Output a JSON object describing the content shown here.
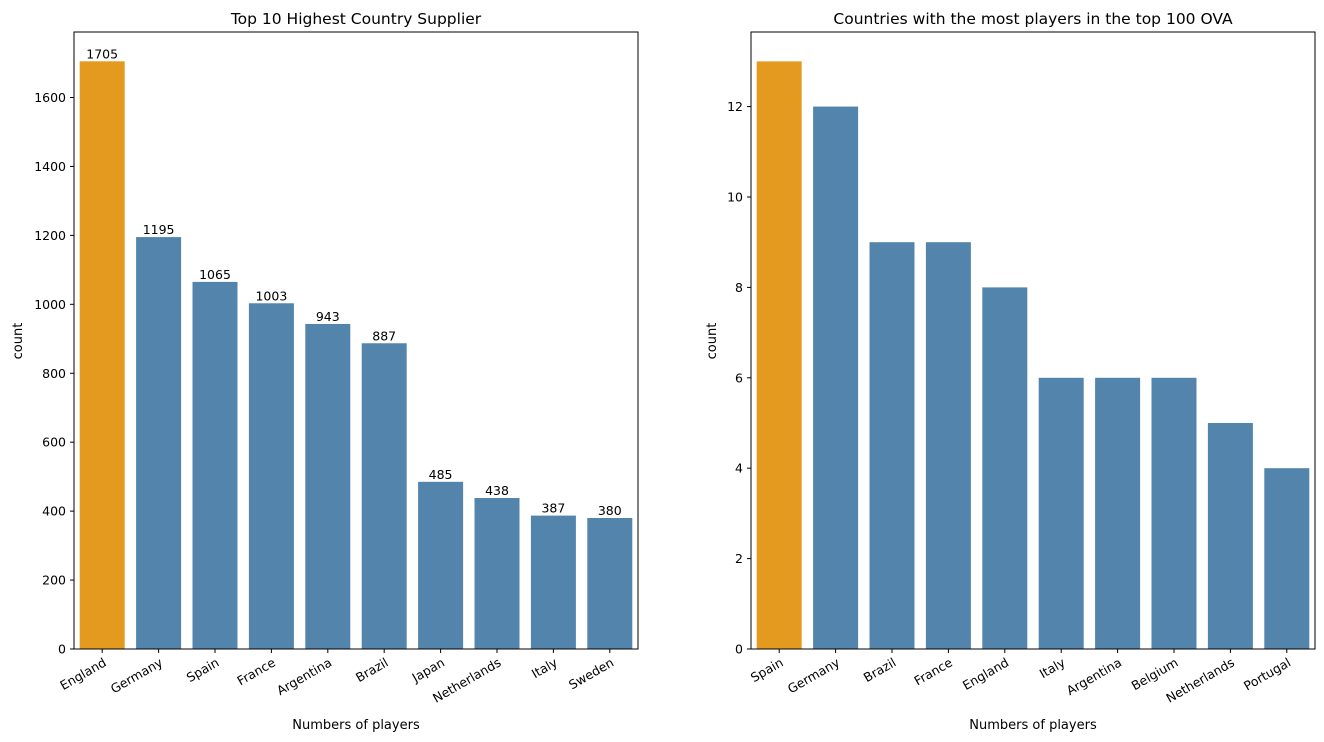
{
  "chart_data": [
    {
      "type": "bar",
      "title": "Top 10 Highest Country Supplier",
      "xlabel": "Numbers of players",
      "ylabel": "count",
      "categories": [
        "England",
        "Germany",
        "Spain",
        "France",
        "Argentina",
        "Brazil",
        "Japan",
        "Netherlands",
        "Italy",
        "Sweden"
      ],
      "values": [
        1705,
        1195,
        1065,
        1003,
        943,
        887,
        485,
        438,
        387,
        380
      ],
      "data_labels": [
        "1705",
        "1195",
        "1065",
        "1003",
        "943",
        "887",
        "485",
        "438",
        "387",
        "380"
      ],
      "yticks": [
        0,
        200,
        400,
        600,
        800,
        1000,
        1200,
        1400,
        1600
      ],
      "ylim": [
        0,
        1790
      ],
      "grid": false,
      "highlight_index": 0,
      "colors": {
        "highlight": "#e39a1e",
        "default": "#5384ab"
      }
    },
    {
      "type": "bar",
      "title": "Countries with the most players in the top 100 OVA",
      "xlabel": "Numbers of players",
      "ylabel": "count",
      "categories": [
        "Spain",
        "Germany",
        "Brazil",
        "France",
        "England",
        "Italy",
        "Argentina",
        "Belgium",
        "Netherlands",
        "Portugal"
      ],
      "values": [
        13,
        12,
        9,
        9,
        8,
        6,
        6,
        6,
        5,
        4
      ],
      "yticks": [
        0,
        2,
        4,
        6,
        8,
        10,
        12
      ],
      "ylim": [
        0,
        13.65
      ],
      "grid": false,
      "highlight_index": 0,
      "colors": {
        "highlight": "#e39a1e",
        "default": "#5384ab"
      }
    }
  ]
}
